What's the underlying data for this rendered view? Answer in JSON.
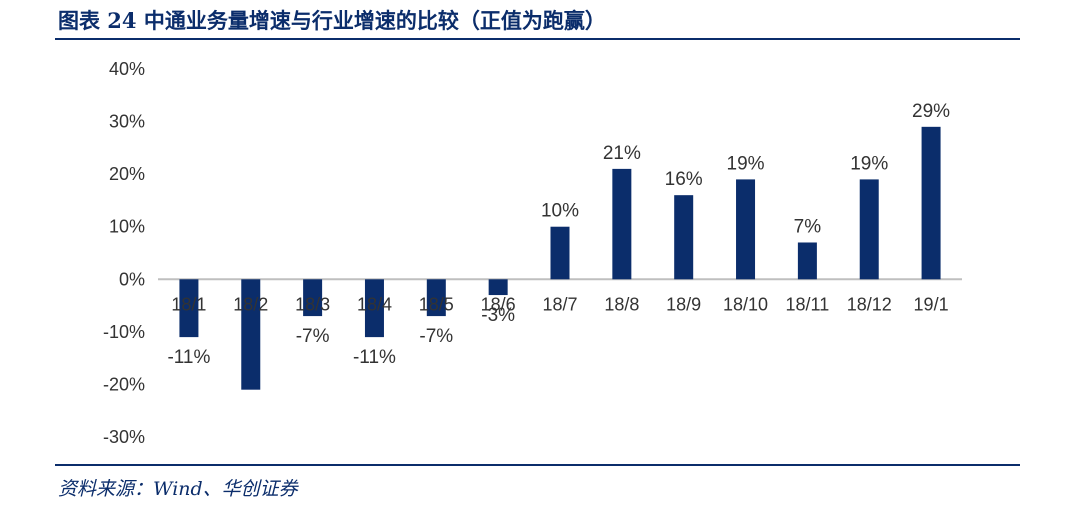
{
  "figure": {
    "title": "图表 24   中通业务量增速与行业增速的比较（正值为跑赢）",
    "source": "资料来源：Wind、华创证券"
  },
  "colors": {
    "bar": "#0b2d6b",
    "axis": "#bfbfbf",
    "text": "#333333"
  },
  "chart_data": {
    "type": "bar",
    "title": "",
    "xlabel": "",
    "ylabel": "",
    "categories": [
      "18/1",
      "18/2",
      "18/3",
      "18/4",
      "18/5",
      "18/6",
      "18/7",
      "18/8",
      "18/9",
      "18/10",
      "18/11",
      "18/12",
      "19/1"
    ],
    "values": [
      -11,
      -21,
      -7,
      -11,
      -7,
      -3,
      10,
      21,
      16,
      19,
      7,
      19,
      29
    ],
    "data_labels": [
      "-11%",
      "",
      "-7%",
      "-11%",
      "-7%",
      "-3%",
      "10%",
      "21%",
      "16%",
      "19%",
      "7%",
      "19%",
      "29%"
    ],
    "ylim": [
      -30,
      40
    ],
    "yticks": [
      40,
      30,
      20,
      10,
      0,
      -10,
      -20,
      -30
    ],
    "ytick_labels": [
      "40%",
      "30%",
      "20%",
      "10%",
      "0%",
      "-10%",
      "-20%",
      "-30%"
    ],
    "grid": false,
    "legend": "none"
  }
}
